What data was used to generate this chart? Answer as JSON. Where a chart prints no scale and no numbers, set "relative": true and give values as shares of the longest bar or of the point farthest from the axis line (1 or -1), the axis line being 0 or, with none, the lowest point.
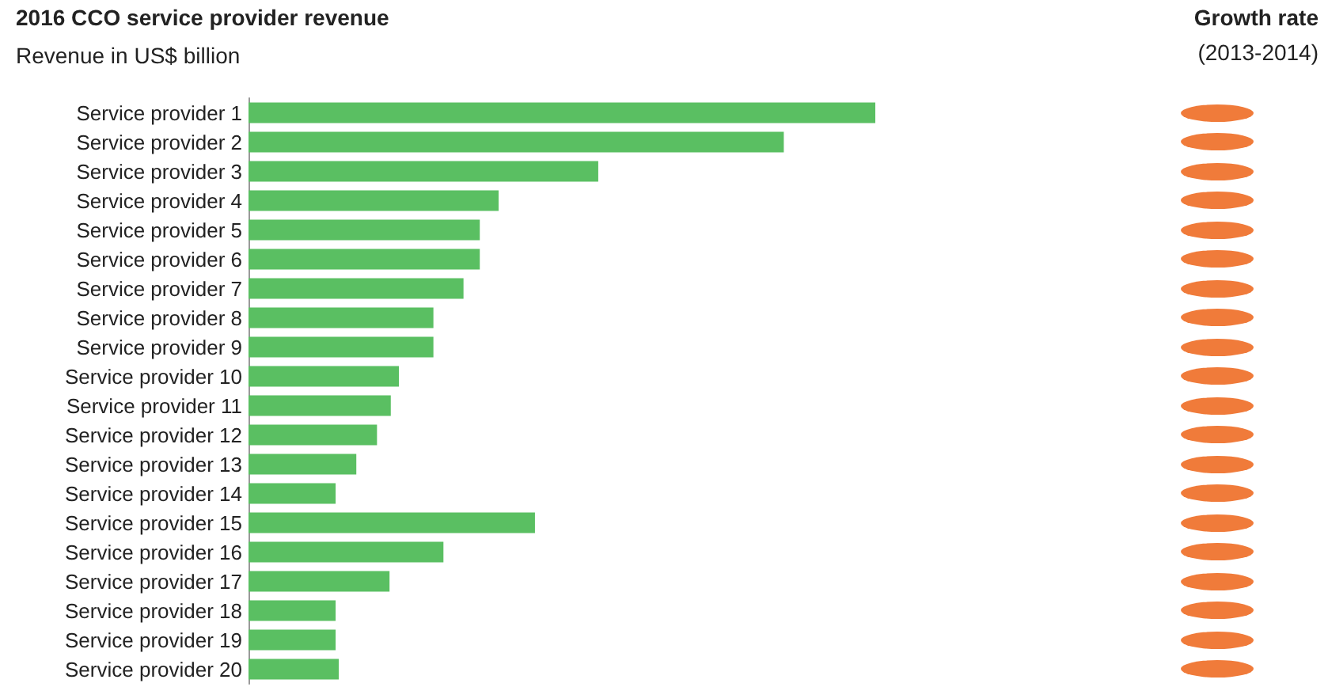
{
  "chart_data": {
    "type": "bar",
    "orientation": "horizontal",
    "relative": true,
    "title": "2016 CCO service provider revenue",
    "subtitle": "Revenue in US$ billion",
    "annotations": [
      "Growth rate",
      "(2013-2014)"
    ],
    "categories": [
      "Service provider 1",
      "Service provider 2",
      "Service provider 3",
      "Service provider 4",
      "Service provider 5",
      "Service provider 6",
      "Service provider 7",
      "Service provider 8",
      "Service provider 9",
      "Service provider 10",
      "Service provider 11",
      "Service provider 12",
      "Service provider 13",
      "Service provider 14",
      "Service provider 15",
      "Service provider 16",
      "Service provider 17",
      "Service provider 18",
      "Service provider 19",
      "Service provider 20"
    ],
    "values": [
      1,
      0.854,
      0.558,
      0.399,
      0.369,
      0.369,
      0.343,
      0.295,
      0.295,
      0.24,
      0.227,
      0.205,
      0.172,
      0.139,
      0.457,
      0.311,
      0.225,
      0.139,
      0.139,
      0.144
    ],
    "color": "#5abf62"
  }
}
